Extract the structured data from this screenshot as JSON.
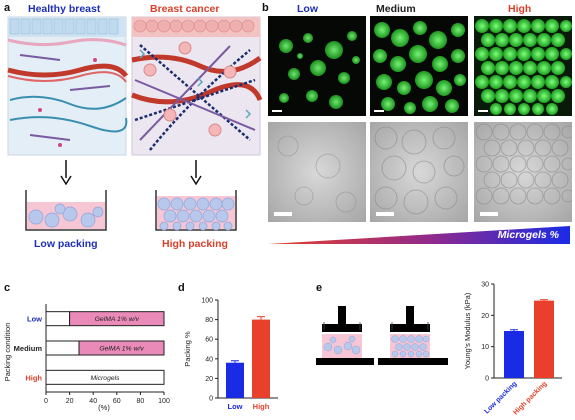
{
  "panel_a": {
    "label": "a",
    "healthy_title": "Healthy breast",
    "cancer_title": "Breast cancer",
    "low_packing": "Low packing",
    "high_packing": "High packing"
  },
  "panel_b": {
    "label": "b",
    "col_low": "Low",
    "col_medium": "Medium",
    "col_high": "High",
    "gradient_label": "Microgels %"
  },
  "panel_c": {
    "label": "c",
    "y_title": "Packing condition",
    "x_unit": "(%)",
    "row_low": "Low",
    "row_medium": "Medium",
    "row_high": "High",
    "bar_text_low": "GelMA 1% w/v",
    "bar_text_medium": "GelMA 1% w/v",
    "bar_text_high": "Microgels",
    "color_pink": "#e98ab8"
  },
  "panel_d": {
    "label": "d",
    "color_low": "#1a2be6",
    "color_high": "#e8402a"
  },
  "panel_e": {
    "label": "e",
    "color_low": "#1a2be6",
    "color_high": "#e8402a"
  },
  "chart_data": [
    {
      "type": "bar",
      "id": "c",
      "orientation": "horizontal-stacked",
      "categories": [
        "Low",
        "Medium",
        "High"
      ],
      "series": [
        {
          "values": [
            20,
            28,
            100
          ]
        },
        {
          "values": [
            80,
            72,
            0
          ]
        }
      ],
      "xlim": [
        0,
        100
      ],
      "xticks": [
        0,
        20,
        40,
        60,
        80,
        100
      ],
      "xlabel": "(%)",
      "ylabel": "Packing condition"
    },
    {
      "type": "bar",
      "id": "d",
      "categories": [
        "Low",
        "High"
      ],
      "values": [
        36,
        80
      ],
      "errors": [
        2,
        3
      ],
      "ylim": [
        0,
        100
      ],
      "yticks": [
        0,
        20,
        40,
        60,
        80,
        100
      ],
      "ylabel": "Packing %"
    },
    {
      "type": "bar",
      "id": "e",
      "categories": [
        "Low packing",
        "High packing"
      ],
      "values": [
        15.0,
        24.7
      ],
      "errors": [
        0.4,
        0.3
      ],
      "ylim": [
        0,
        30
      ],
      "yticks": [
        0,
        10,
        20,
        30
      ],
      "ylabel": "Young's Modulus (kPa)"
    }
  ]
}
